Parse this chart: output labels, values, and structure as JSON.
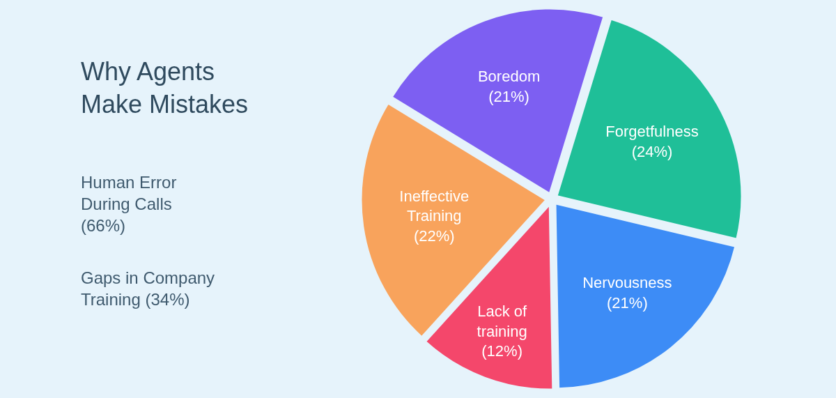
{
  "chart_data": {
    "type": "pie",
    "title": "Why Agents Make Mistakes",
    "categories": [
      "Forgetfulness",
      "Nervousness",
      "Lack of training",
      "Ineffective Training",
      "Boredom"
    ],
    "values": [
      24,
      21,
      12,
      22,
      21
    ],
    "value_labels": [
      "(24%)",
      "(21%)",
      "(12%)",
      "(22%)",
      "(21%)"
    ],
    "colors": [
      "#1fbf98",
      "#3d8cf6",
      "#f4476b",
      "#f8a35c",
      "#7d5ff2"
    ],
    "annotations": [
      "Human Error During Calls (66%)",
      "Gaps in Company Training (34%)"
    ],
    "legend": false
  }
}
